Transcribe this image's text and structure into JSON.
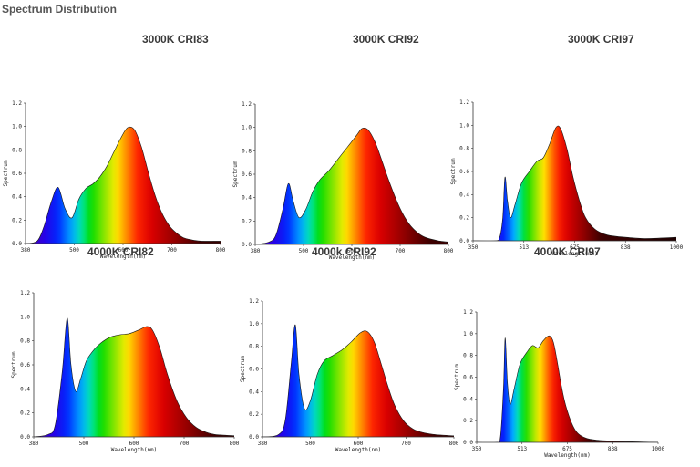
{
  "page": {
    "title": "Spectrum Distribution"
  },
  "chart_data": [
    {
      "type": "area",
      "title": "3000K CRI83",
      "xlabel": "Wavelength(nm)",
      "ylabel": "Spectrum",
      "xlim": [
        380,
        800
      ],
      "ylim": [
        0,
        1.2
      ],
      "xticks": [
        "380",
        "500",
        "600",
        "700",
        "800"
      ],
      "yticks": [
        "0.0",
        "0.2",
        "0.4",
        "0.6",
        "0.8",
        "1.0",
        "1.2"
      ],
      "grid": false,
      "x": [
        380,
        405,
        420,
        435,
        450,
        465,
        480,
        495,
        510,
        525,
        540,
        555,
        570,
        585,
        600,
        615,
        630,
        645,
        660,
        675,
        690,
        705,
        720,
        740,
        760,
        800
      ],
      "y": [
        0.0,
        0.02,
        0.15,
        0.35,
        0.48,
        0.3,
        0.22,
        0.38,
        0.47,
        0.51,
        0.57,
        0.66,
        0.78,
        0.9,
        0.99,
        0.97,
        0.82,
        0.6,
        0.4,
        0.25,
        0.15,
        0.09,
        0.05,
        0.03,
        0.02,
        0.02
      ]
    },
    {
      "type": "area",
      "title": "3000K CRI92",
      "xlabel": "Wavelength(nm)",
      "ylabel": "Spectrum",
      "xlim": [
        380,
        800
      ],
      "ylim": [
        0,
        1.2
      ],
      "xticks": [
        "380",
        "500",
        "600",
        "700",
        "800"
      ],
      "yticks": [
        "0.0",
        "0.2",
        "0.4",
        "0.6",
        "0.8",
        "1.0",
        "1.2"
      ],
      "grid": false,
      "x": [
        380,
        410,
        425,
        440,
        452,
        462,
        475,
        490,
        505,
        520,
        540,
        560,
        580,
        600,
        612,
        625,
        640,
        655,
        670,
        690,
        710,
        730,
        750,
        780,
        800
      ],
      "y": [
        0.0,
        0.02,
        0.08,
        0.3,
        0.52,
        0.38,
        0.23,
        0.3,
        0.45,
        0.55,
        0.63,
        0.73,
        0.83,
        0.93,
        0.99,
        0.98,
        0.88,
        0.72,
        0.55,
        0.35,
        0.2,
        0.11,
        0.06,
        0.03,
        0.02
      ]
    },
    {
      "type": "area",
      "title": "3000K CRI97",
      "xlabel": "Wavelength(nm)",
      "ylabel": "Spectrum",
      "xlim": [
        350,
        1000
      ],
      "ylim": [
        0,
        1.2
      ],
      "xticks": [
        "350",
        "513",
        "675",
        "838",
        "1000"
      ],
      "yticks": [
        "0.0",
        "0.2",
        "0.4",
        "0.6",
        "0.8",
        "1.0",
        "1.2"
      ],
      "grid": false,
      "x": [
        350,
        420,
        435,
        445,
        452,
        460,
        470,
        485,
        505,
        530,
        555,
        575,
        595,
        615,
        630,
        650,
        670,
        690,
        710,
        740,
        780,
        840,
        900,
        1000
      ],
      "y": [
        0.0,
        0.0,
        0.03,
        0.2,
        0.55,
        0.35,
        0.2,
        0.32,
        0.5,
        0.6,
        0.69,
        0.72,
        0.84,
        0.98,
        0.97,
        0.8,
        0.55,
        0.35,
        0.2,
        0.1,
        0.05,
        0.03,
        0.02,
        0.03
      ]
    },
    {
      "type": "area",
      "title": "4000K CRI82",
      "xlabel": "Wavelength(nm)",
      "ylabel": "Spectrum",
      "xlim": [
        380,
        800
      ],
      "ylim": [
        0,
        1.2
      ],
      "xticks": [
        "380",
        "500",
        "600",
        "700",
        "800"
      ],
      "yticks": [
        "0.0",
        "0.2",
        "0.4",
        "0.6",
        "0.8",
        "1.0",
        "1.2"
      ],
      "grid": false,
      "x": [
        380,
        410,
        425,
        440,
        450,
        458,
        468,
        478,
        490,
        505,
        520,
        540,
        560,
        580,
        600,
        618,
        630,
        645,
        660,
        680,
        700,
        720,
        740,
        760,
        800
      ],
      "y": [
        0.0,
        0.02,
        0.1,
        0.55,
        0.99,
        0.6,
        0.38,
        0.48,
        0.63,
        0.72,
        0.78,
        0.83,
        0.85,
        0.86,
        0.89,
        0.92,
        0.88,
        0.73,
        0.52,
        0.3,
        0.16,
        0.08,
        0.04,
        0.02,
        0.01
      ]
    },
    {
      "type": "area",
      "title": "4000k CRI92",
      "xlabel": "Wavelength(nm)",
      "ylabel": "Spectrum",
      "xlim": [
        380,
        800
      ],
      "ylim": [
        0,
        1.2
      ],
      "xticks": [
        "380",
        "500",
        "600",
        "700",
        "800"
      ],
      "yticks": [
        "0.0",
        "0.2",
        "0.4",
        "0.6",
        "0.8",
        "1.0",
        "1.2"
      ],
      "grid": false,
      "x": [
        380,
        415,
        430,
        443,
        452,
        460,
        472,
        485,
        500,
        515,
        535,
        555,
        575,
        595,
        610,
        625,
        640,
        655,
        670,
        690,
        710,
        730,
        760,
        800
      ],
      "y": [
        0.0,
        0.02,
        0.15,
        0.65,
        0.99,
        0.55,
        0.25,
        0.32,
        0.55,
        0.67,
        0.72,
        0.77,
        0.84,
        0.92,
        0.93,
        0.84,
        0.65,
        0.45,
        0.28,
        0.14,
        0.07,
        0.04,
        0.02,
        0.01
      ]
    },
    {
      "type": "area",
      "title": "4000K CRI97",
      "xlabel": "Wavelength(nm)",
      "ylabel": "Spectrum",
      "xlim": [
        350,
        1000
      ],
      "ylim": [
        0,
        1.2
      ],
      "xticks": [
        "350",
        "513",
        "675",
        "838",
        "1000"
      ],
      "yticks": [
        "0.0",
        "0.2",
        "0.4",
        "0.6",
        "0.8",
        "1.0",
        "1.2"
      ],
      "grid": false,
      "x": [
        350,
        420,
        435,
        446,
        452,
        460,
        470,
        485,
        505,
        530,
        550,
        570,
        590,
        610,
        625,
        640,
        655,
        670,
        690,
        710,
        740,
        780,
        850,
        1000
      ],
      "y": [
        0.0,
        0.0,
        0.05,
        0.5,
        0.96,
        0.55,
        0.35,
        0.5,
        0.72,
        0.83,
        0.89,
        0.87,
        0.94,
        0.98,
        0.92,
        0.72,
        0.5,
        0.33,
        0.18,
        0.09,
        0.04,
        0.02,
        0.01,
        0.0
      ]
    }
  ]
}
